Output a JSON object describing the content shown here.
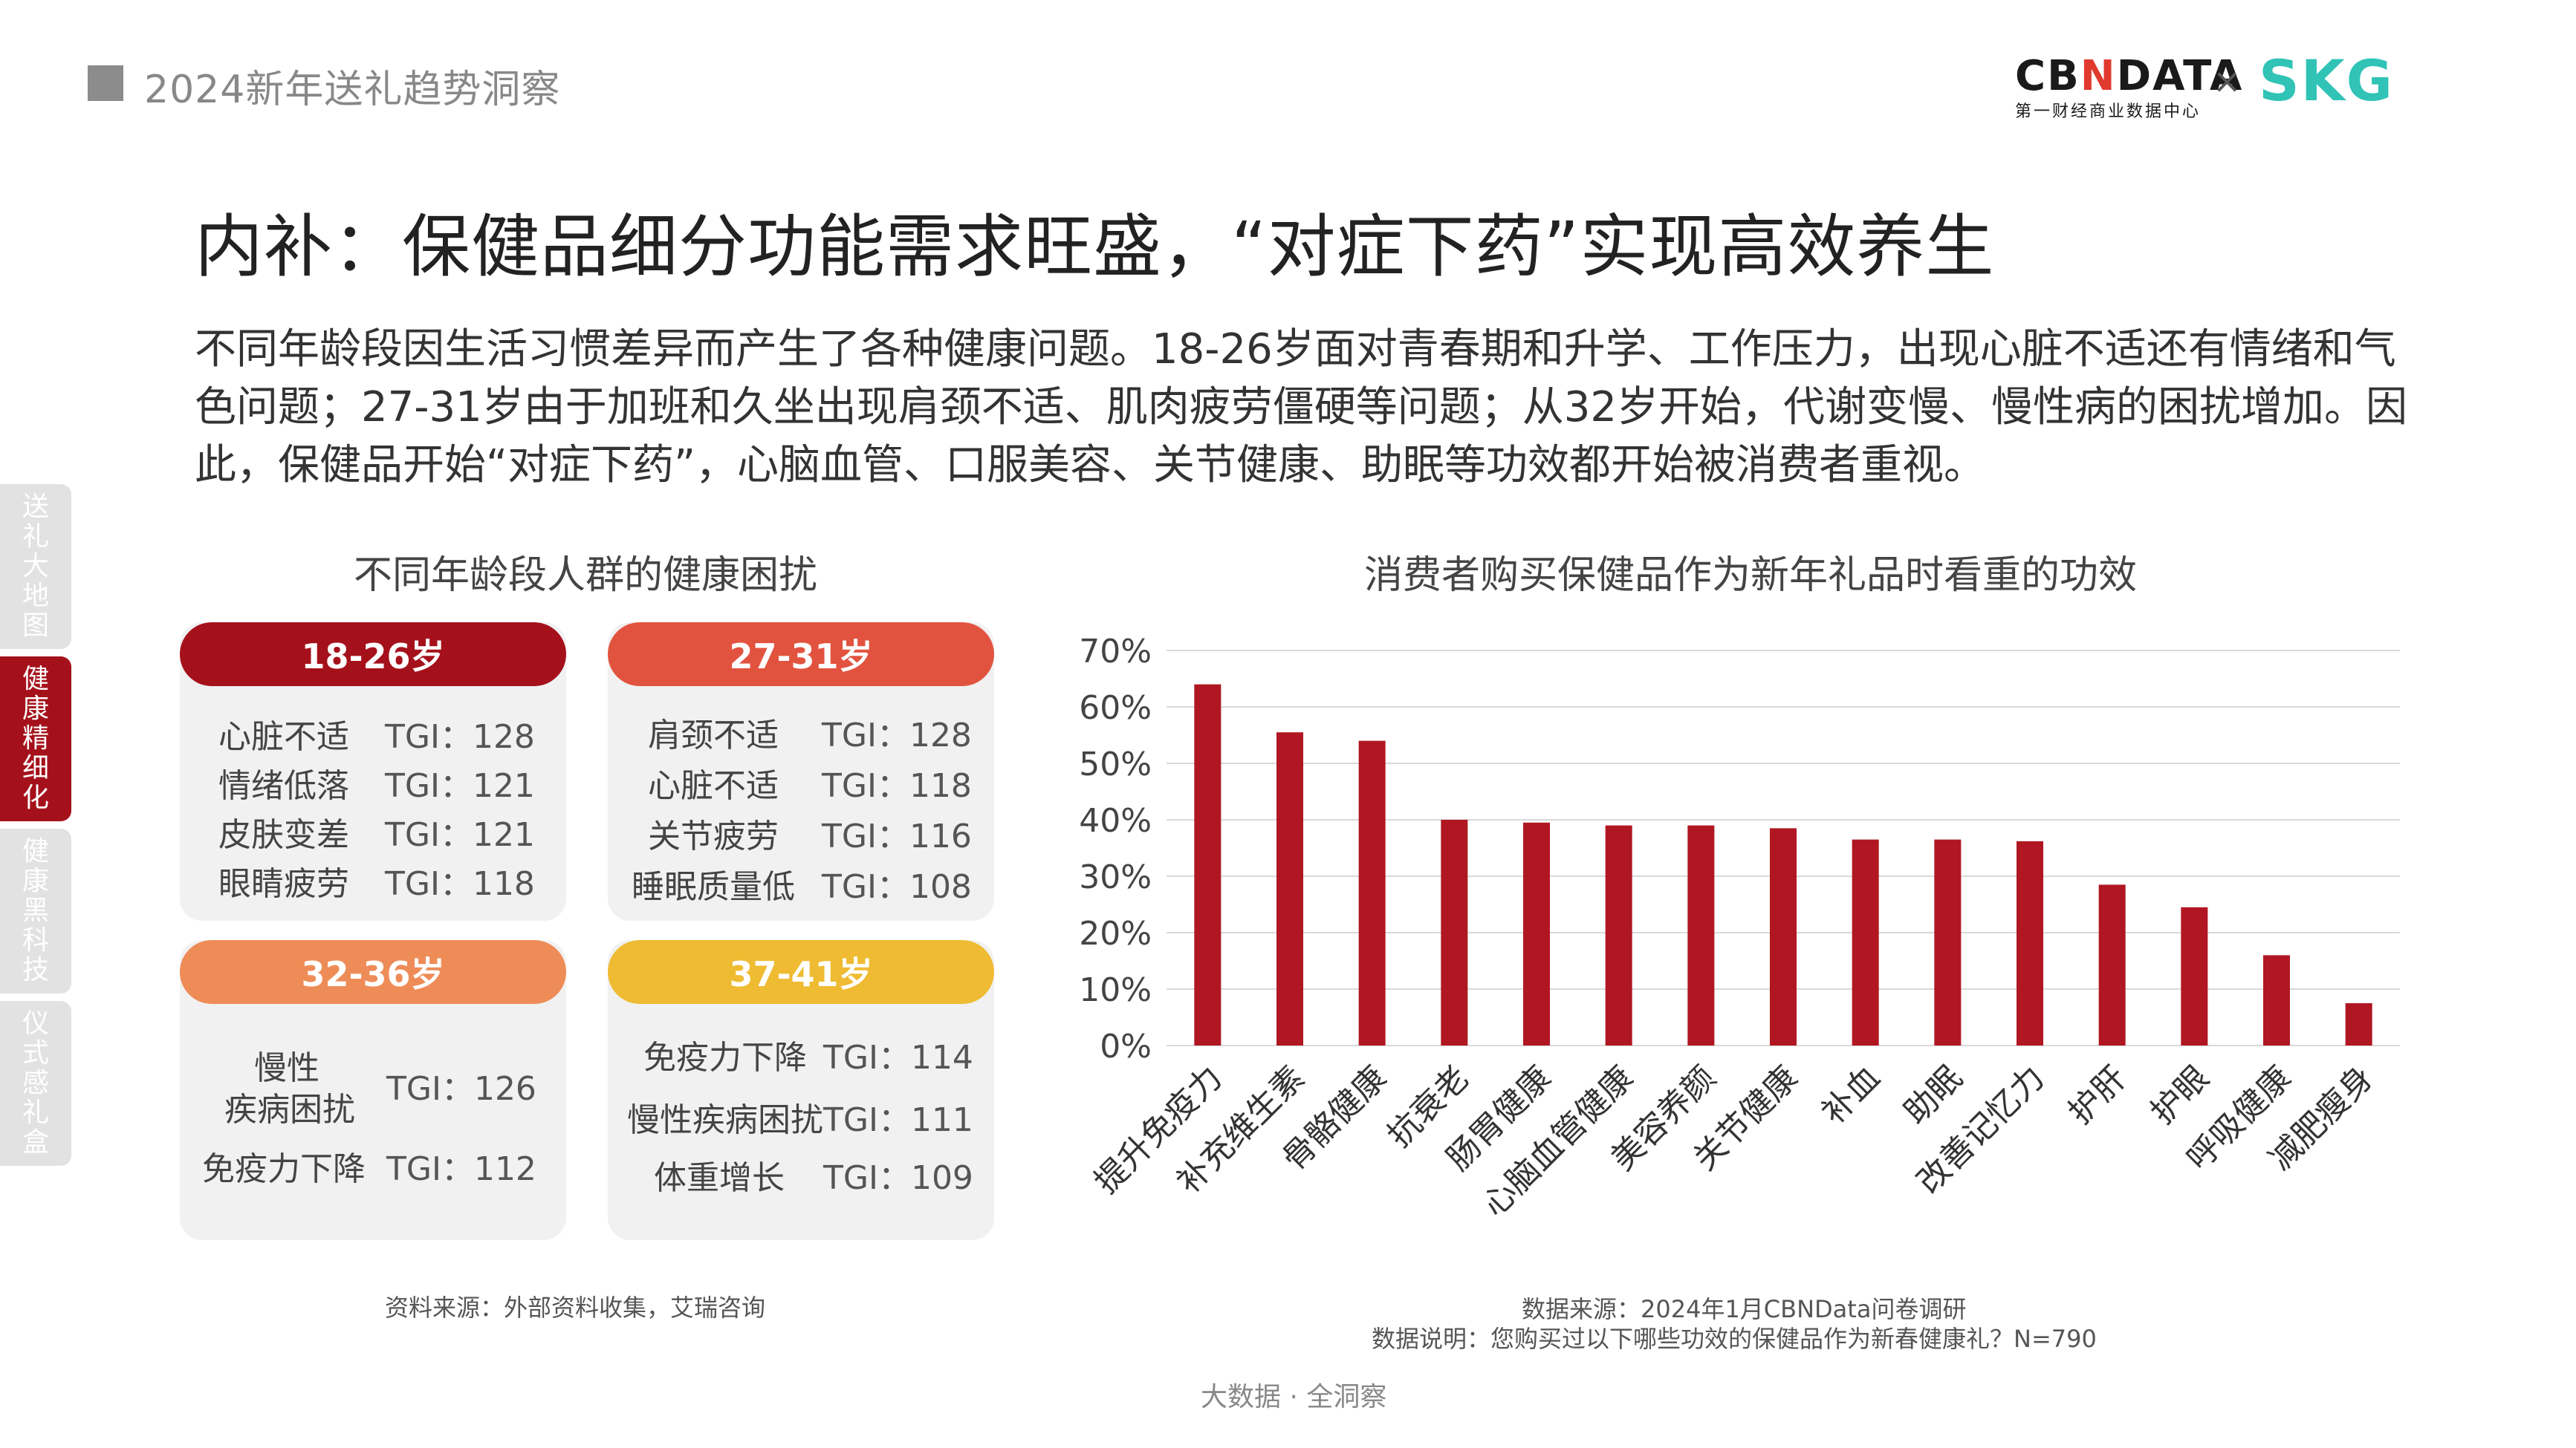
{
  "header": {
    "title": "2024新年送礼趋势洞察",
    "logo_cbn_a": "CB",
    "logo_cbn_n": "N",
    "logo_cbn_b": "DATA",
    "logo_cbn_sub": "第一财经商业数据中心",
    "logo_x": "×",
    "logo_skg": "SKG"
  },
  "main_title": "内补：保健品细分功能需求旺盛，“对症下药”实现高效养生",
  "paragraph": "不同年龄段因生活习惯差异而产生了各种健康问题。18-26岁面对青春期和升学、工作压力，出现心脏不适还有情绪和气色问题；27-31岁由于加班和久坐出现肩颈不适、肌肉疲劳僵硬等问题；从32岁开始，代谢变慢、慢性病的困扰增加。因此，保健品开始“对症下药”，心脑血管、口服美容、关节健康、助眠等功效都开始被消费者重视。",
  "side_nav": [
    {
      "label": "送礼大地图",
      "active": false
    },
    {
      "label": "健康精细化",
      "active": true
    },
    {
      "label": "健康黑科技",
      "active": false
    },
    {
      "label": "仪式感礼盒",
      "active": false
    }
  ],
  "left_panel": {
    "title": "不同年龄段人群的健康困扰",
    "cards": [
      {
        "age": "18-26岁",
        "color": "#a5111b",
        "rows": [
          {
            "name": "心脏不适",
            "tgi": "TGI：128"
          },
          {
            "name": "情绪低落",
            "tgi": "TGI：121"
          },
          {
            "name": "皮肤变差",
            "tgi": "TGI：121"
          },
          {
            "name": "眼睛疲劳",
            "tgi": "TGI：118"
          }
        ]
      },
      {
        "age": "27-31岁",
        "color": "#e2533f",
        "rows": [
          {
            "name": "肩颈不适",
            "tgi": "TGI：128"
          },
          {
            "name": "心脏不适",
            "tgi": "TGI：118"
          },
          {
            "name": "关节疲劳",
            "tgi": "TGI：116"
          },
          {
            "name": "睡眠质量低",
            "tgi": "TGI：108"
          }
        ]
      },
      {
        "age": "32-36岁",
        "color": "#ee8c58",
        "rows": [
          {
            "name": "慢性",
            "name2": "疾病困扰",
            "tgi": "TGI：126"
          },
          {
            "name": "免疫力下降",
            "tgi": "TGI：112"
          }
        ]
      },
      {
        "age": "37-41岁",
        "color": "#efbb32",
        "rows": [
          {
            "name": "免疫力下降",
            "tgi": "TGI：114"
          },
          {
            "name": "慢性疾病困扰",
            "tgi": "TGI：111"
          },
          {
            "name": "体重增长",
            "tgi": "TGI：109"
          }
        ]
      }
    ],
    "source": "资料来源：外部资料收集，艾瑞咨询"
  },
  "chart_data": {
    "type": "bar",
    "title": "消费者购买保健品作为新年礼品时看重的功效",
    "categories": [
      "提升免疫力",
      "补充维生素",
      "骨骼健康",
      "抗衰老",
      "肠胃健康",
      "心脑血管健康",
      "美容养颜",
      "关节健康",
      "补血",
      "助眠",
      "改善记忆力",
      "护肝",
      "护眼",
      "呼吸健康",
      "减肥瘦身"
    ],
    "values": [
      64,
      55.5,
      54,
      40,
      39.5,
      39,
      39,
      38.5,
      36.5,
      36.5,
      36.2,
      28.5,
      24.5,
      16,
      7.5
    ],
    "ylim": [
      0,
      70
    ],
    "yticks": [
      0,
      10,
      20,
      30,
      40,
      50,
      60,
      70
    ],
    "ytick_labels": [
      "0%",
      "10%",
      "20%",
      "30%",
      "40%",
      "50%",
      "60%",
      "70%"
    ],
    "grid": true,
    "bar_color": "#b01722",
    "source_line1": "数据来源：2024年1月CBNData问卷调研",
    "source_line2": "数据说明：您购买过以下哪些功效的保健品作为新春健康礼？N=790"
  },
  "footer": "大数据 · 全洞察"
}
